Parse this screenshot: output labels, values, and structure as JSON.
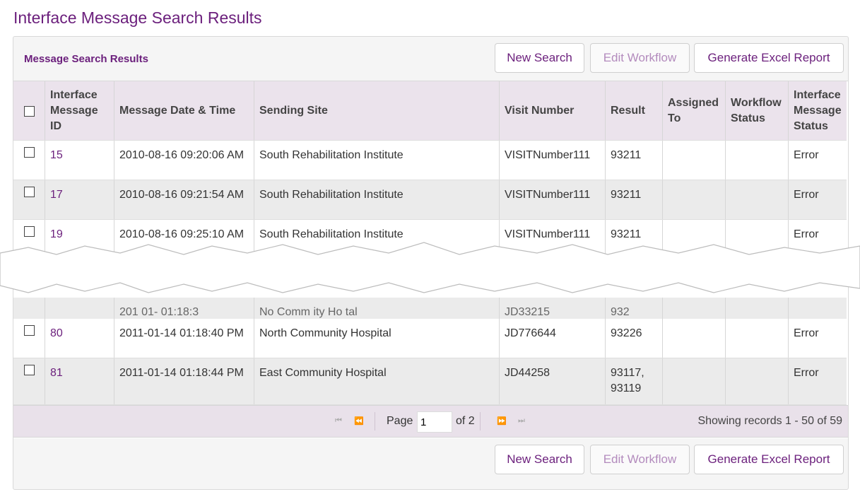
{
  "page": {
    "title": "Interface Message Search Results"
  },
  "panel": {
    "title": "Message Search Results"
  },
  "buttons": {
    "new_search": "New Search",
    "edit_workflow": "Edit Workflow",
    "excel": "Generate Excel Report"
  },
  "table": {
    "headers": {
      "id": "Interface Message ID",
      "datetime": "Message Date & Time",
      "site": "Sending Site",
      "visit": "Visit Number",
      "result": "Result",
      "assigned": "Assigned To",
      "workflow": "Workflow Status",
      "status": "Interface Message Status"
    },
    "rows": [
      {
        "id": "15",
        "datetime": "2010-08-16 09:20:06 AM",
        "site": "South Rehabilitation Institute",
        "visit": "VISITNumber111",
        "result": "93211",
        "assigned": "",
        "workflow": "",
        "status": "Error"
      },
      {
        "id": "17",
        "datetime": "2010-08-16 09:21:54 AM",
        "site": "South Rehabilitation Institute",
        "visit": "VISITNumber111",
        "result": "93211",
        "assigned": "",
        "workflow": "",
        "status": "Error"
      },
      {
        "id": "19",
        "datetime": "2010-08-16 09:25:10 AM",
        "site": "South Rehabilitation Institute",
        "visit": "VISITNumber111",
        "result": "93211",
        "assigned": "",
        "workflow": "",
        "status": "Error"
      },
      {
        "id": "80",
        "datetime": "2011-01-14 01:18:40 PM",
        "site": "North Community Hospital",
        "visit": "JD776644",
        "result": "93226",
        "assigned": "",
        "workflow": "",
        "status": "Error"
      },
      {
        "id": "81",
        "datetime": "2011-01-14 01:18:44 PM",
        "site": "East Community Hospital",
        "visit": "JD44258",
        "result": "93117, 93119",
        "assigned": "",
        "workflow": "",
        "status": "Error"
      }
    ],
    "partial_row": {
      "datetime": "201  01-  01:18:3  ",
      "site": "No   Comm   ity Ho   tal",
      "visit": "JD33215",
      "result": "932  "
    }
  },
  "pager": {
    "page_label": "Page",
    "page_value": "1",
    "of_label": "of 2",
    "status": "Showing records 1 - 50 of 59",
    "icons": [
      "first-page-icon",
      "prev-page-icon",
      "next-page-icon",
      "last-page-icon"
    ]
  },
  "colors": {
    "accent": "#6b1f7c",
    "header_bg": "#ebe3ec",
    "alt_row": "#ebebeb"
  }
}
